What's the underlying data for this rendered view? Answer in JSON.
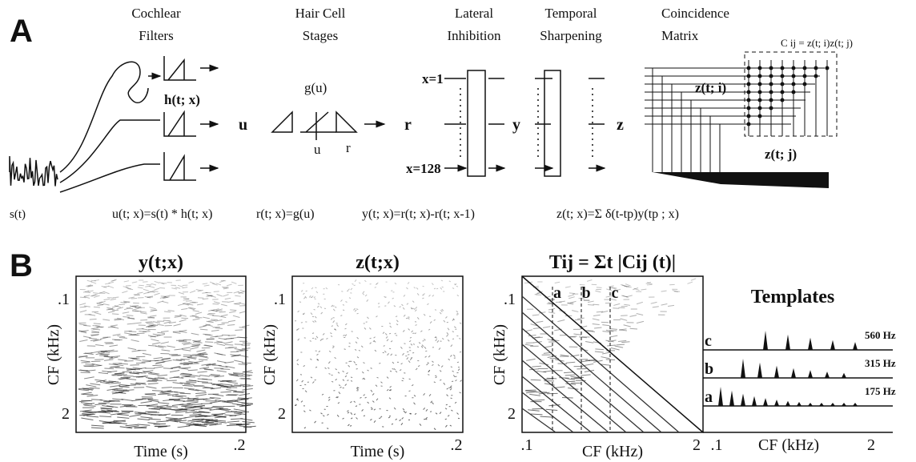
{
  "panel_a": {
    "label": "A",
    "stages": [
      {
        "lines": [
          "Cochlear",
          "Filters"
        ]
      },
      {
        "lines": [
          "Hair Cell",
          "Stages"
        ]
      },
      {
        "lines": [
          "Lateral",
          "Inhibition"
        ]
      },
      {
        "lines": [
          "Temporal",
          "Sharpening"
        ]
      },
      {
        "lines": [
          "Coincidence",
          "Matrix"
        ]
      }
    ],
    "signals": [
      "u",
      "r",
      "y",
      "z"
    ],
    "filter_label": "h(t; x)",
    "nonlinearity_label": "g(u)",
    "axis_u": "u",
    "axis_r": "r",
    "channel_first": "x=1",
    "channel_last": "x=128",
    "matrix_label": "C ij = z(t; i)z(t; j)",
    "z_i": "z(t; i)",
    "z_j": "z(t; j)",
    "input": "s(t)",
    "equations": [
      "u(t; x)=s(t) * h(t; x)",
      "r(t; x)=g(u)",
      "y(t; x)=r(t; x)-r(t; x-1)",
      "z(t; x)=Σ δ(t-tp)y(tp ; x)"
    ]
  },
  "panel_b": {
    "label": "B",
    "plots": [
      {
        "title": "y(t;x)",
        "y_top": ".1",
        "y_bottom": "2",
        "y_label": "CF (kHz)",
        "x_label": "Time (s)",
        "x_right": ".2"
      },
      {
        "title": "z(t;x)",
        "y_top": ".1",
        "y_bottom": "2",
        "y_label": "CF (kHz)",
        "x_label": "Time (s)",
        "x_right": ".2"
      },
      {
        "title": "Tij = Σt |Cij (t)|",
        "y_top": ".1",
        "y_bottom": "2",
        "y_label": "CF (kHz)",
        "x_left": ".1",
        "x_label": "CF (kHz)",
        "x_right": "2",
        "markers": [
          "a",
          "b",
          "c"
        ]
      }
    ],
    "templates": {
      "title": "Templates",
      "rows": [
        {
          "name": "c",
          "freq": "560 Hz"
        },
        {
          "name": "b",
          "freq": "315 Hz"
        },
        {
          "name": "a",
          "freq": "175 Hz"
        }
      ],
      "x_left": ".1",
      "x_label": "CF (kHz)",
      "x_right": "2"
    }
  }
}
